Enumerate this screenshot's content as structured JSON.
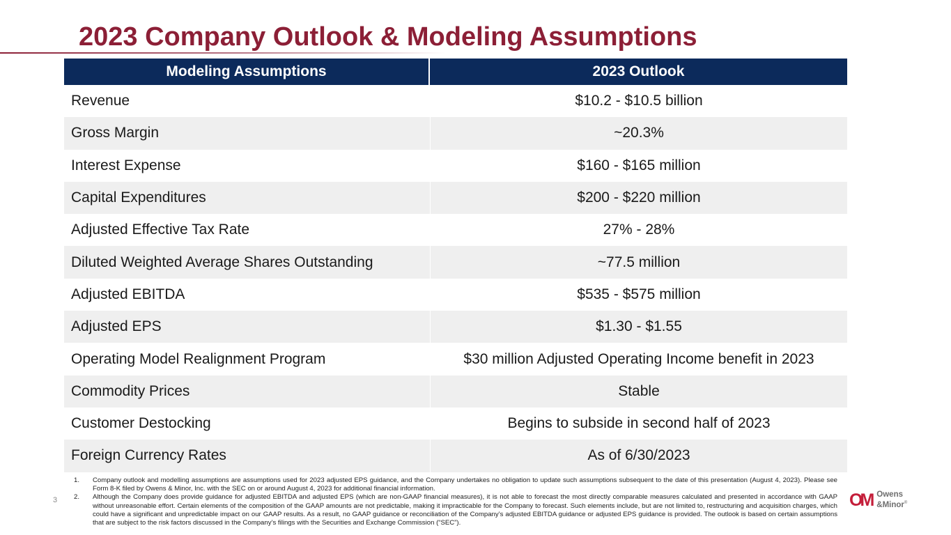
{
  "slide": {
    "title": "2023 Company Outlook & Modeling Assumptions",
    "page_number": "3"
  },
  "table": {
    "headers": [
      "Modeling Assumptions",
      "2023 Outlook"
    ],
    "rows": [
      {
        "assumption": "Revenue",
        "outlook": "$10.2 - $10.5 billion"
      },
      {
        "assumption": "Gross Margin",
        "outlook": "~20.3%"
      },
      {
        "assumption": "Interest Expense",
        "outlook": "$160 - $165 million"
      },
      {
        "assumption": "Capital Expenditures",
        "outlook": "$200 - $220 million"
      },
      {
        "assumption": "Adjusted Effective Tax Rate",
        "outlook": "27% - 28%"
      },
      {
        "assumption": "Diluted Weighted Average Shares Outstanding",
        "outlook": "~77.5 million"
      },
      {
        "assumption": "Adjusted EBITDA",
        "outlook": "$535 - $575 million"
      },
      {
        "assumption": "Adjusted EPS",
        "outlook": "$1.30 - $1.55"
      },
      {
        "assumption": "Operating Model Realignment Program",
        "outlook": "$30 million Adjusted Operating Income benefit in 2023"
      },
      {
        "assumption": "Commodity Prices",
        "outlook": "Stable"
      },
      {
        "assumption": "Customer Destocking",
        "outlook": "Begins to subside in second half of 2023"
      },
      {
        "assumption": "Foreign Currency Rates",
        "outlook": "As of 6/30/2023"
      }
    ]
  },
  "footnotes": [
    {
      "number": "1.",
      "text": "Company outlook and modelling assumptions are assumptions used for 2023 adjusted EPS guidance, and the Company undertakes no obligation to update such assumptions subsequent to the date of this presentation (August 4, 2023). Please see Form 8-K filed by Owens & Minor, Inc. with the SEC on or around August 4, 2023 for additional financial information."
    },
    {
      "number": "2.",
      "text": "Although the Company does provide guidance for adjusted EBITDA and adjusted EPS (which are non-GAAP financial measures), it is not able to forecast the most directly comparable measures calculated and presented in accordance with GAAP without unreasonable effort. Certain elements of the composition of the GAAP amounts are not predictable, making it impracticable for the Company to forecast. Such elements include, but are not limited to, restructuring and acquisition charges, which could have a significant and unpredictable impact on our GAAP results. As a result, no GAAP guidance or reconciliation of the Company’s adjusted EBITDA guidance or adjusted EPS guidance is provided. The outlook is based on certain assumptions that are subject to the risk factors discussed in the Company’s filings with the Securities and Exchange Commission (“SEC”)."
    }
  ],
  "logo": {
    "mark_o": "O",
    "mark_m": "M",
    "line1": "Owens",
    "line2": "&Minor",
    "trademark": "®",
    "brand_color": "#c41e3a"
  },
  "colors": {
    "title": "#8c1f36",
    "header_bg": "#0c2a5b",
    "row_alt_bg": "#efefef"
  }
}
